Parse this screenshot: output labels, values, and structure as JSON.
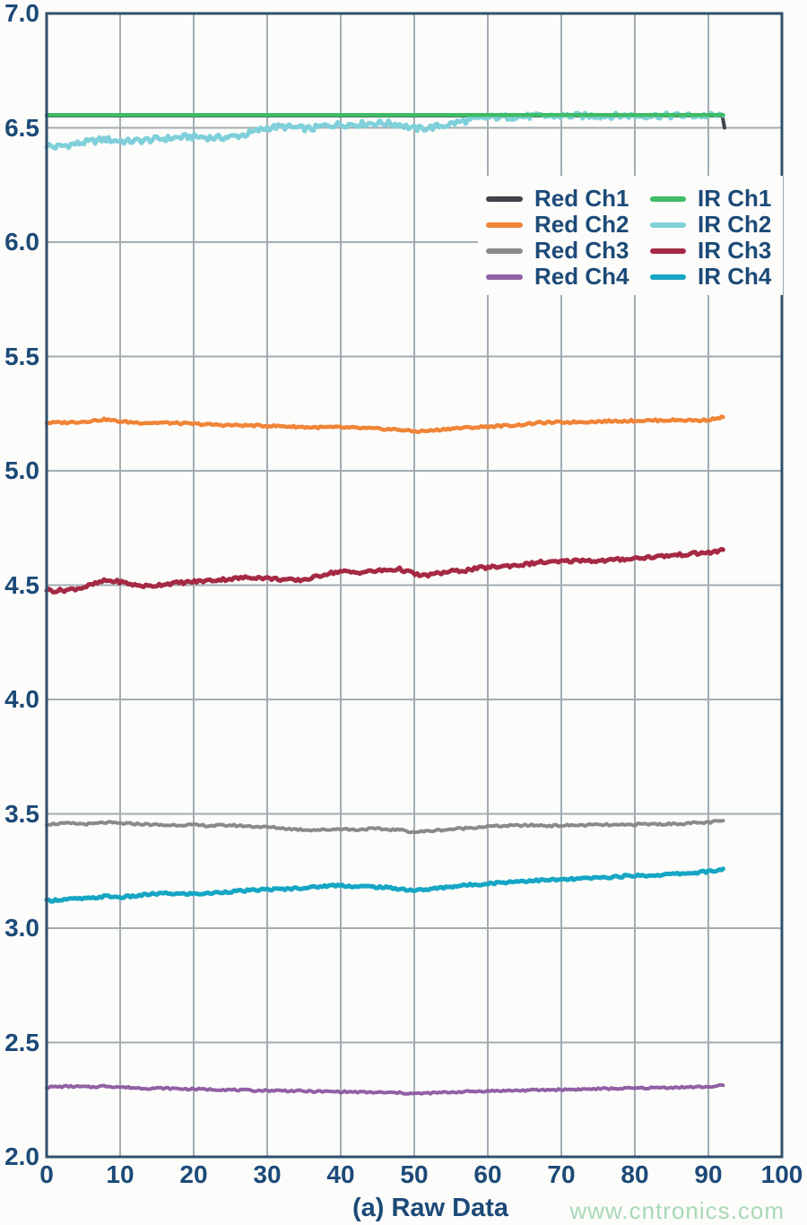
{
  "watermark": {
    "text": "www.cntronics.com"
  },
  "colors": {
    "text": "#1c4a78",
    "frame": "#31506c",
    "grid": "#a2adb3",
    "background": "#fcfcfa",
    "watermark": "#a7d9b6"
  },
  "chart_data": {
    "type": "line",
    "title": "",
    "xlabel": "(a) Raw Data",
    "ylabel": "",
    "xlim": [
      0,
      100
    ],
    "ylim": [
      2.0,
      7.0
    ],
    "x_ticks": [
      "0",
      "10",
      "20",
      "30",
      "40",
      "50",
      "60",
      "70",
      "80",
      "90",
      "100"
    ],
    "y_ticks": [
      "7.0",
      "6.5",
      "6.0",
      "5.5",
      "5.0",
      "4.5",
      "4.0",
      "3.5",
      "3.0",
      "2.5",
      "2.0"
    ],
    "grid": true,
    "legend_position": "upper-right-inside",
    "legend": [
      "Red Ch1",
      "IR Ch1",
      "Red Ch2",
      "IR Ch2",
      "Red Ch3",
      "IR Ch3",
      "Red Ch4",
      "IR Ch4"
    ],
    "x_data_range": [
      0,
      92
    ],
    "series": [
      {
        "name": "Red Ch1",
        "color": "#3f4348",
        "width": 4,
        "noise": 0,
        "points": [
          [
            0,
            6.553
          ],
          [
            91.9,
            6.553
          ],
          [
            92.2,
            6.5
          ]
        ]
      },
      {
        "name": "IR Ch2",
        "color": "#7fd0da",
        "width": 5,
        "noise": 0.013,
        "points": [
          [
            0,
            6.425
          ],
          [
            1,
            6.415
          ],
          [
            2,
            6.42
          ],
          [
            4,
            6.43
          ],
          [
            6,
            6.44
          ],
          [
            8,
            6.45
          ],
          [
            9,
            6.445
          ],
          [
            11,
            6.44
          ],
          [
            13,
            6.445
          ],
          [
            15,
            6.45
          ],
          [
            17,
            6.455
          ],
          [
            19,
            6.46
          ],
          [
            21,
            6.46
          ],
          [
            23,
            6.455
          ],
          [
            25,
            6.46
          ],
          [
            27,
            6.47
          ],
          [
            29,
            6.49
          ],
          [
            30,
            6.5
          ],
          [
            32,
            6.505
          ],
          [
            34,
            6.5
          ],
          [
            36,
            6.495
          ],
          [
            38,
            6.51
          ],
          [
            40,
            6.515
          ],
          [
            42,
            6.515
          ],
          [
            44,
            6.52
          ],
          [
            46,
            6.52
          ],
          [
            48,
            6.515
          ],
          [
            50,
            6.495
          ],
          [
            52,
            6.5
          ],
          [
            54,
            6.51
          ],
          [
            56,
            6.525
          ],
          [
            58,
            6.535
          ],
          [
            60,
            6.545
          ],
          [
            63,
            6.548
          ],
          [
            66,
            6.55
          ],
          [
            70,
            6.552
          ],
          [
            80,
            6.553
          ],
          [
            92,
            6.553
          ]
        ]
      },
      {
        "name": "IR Ch1",
        "color": "#3fbc66",
        "width": 4.5,
        "noise": 0,
        "points": [
          [
            0,
            6.556
          ],
          [
            92,
            6.556
          ]
        ]
      },
      {
        "name": "Red Ch2",
        "color": "#f08437",
        "width": 4.5,
        "noise": 0.0045,
        "points": [
          [
            0,
            5.21
          ],
          [
            3,
            5.212
          ],
          [
            5,
            5.215
          ],
          [
            8,
            5.225
          ],
          [
            10,
            5.215
          ],
          [
            13,
            5.21
          ],
          [
            16,
            5.21
          ],
          [
            20,
            5.205
          ],
          [
            24,
            5.2
          ],
          [
            28,
            5.198
          ],
          [
            32,
            5.195
          ],
          [
            36,
            5.19
          ],
          [
            40,
            5.19
          ],
          [
            44,
            5.185
          ],
          [
            48,
            5.18
          ],
          [
            50,
            5.172
          ],
          [
            52,
            5.175
          ],
          [
            55,
            5.185
          ],
          [
            58,
            5.19
          ],
          [
            61,
            5.195
          ],
          [
            64,
            5.2
          ],
          [
            67,
            5.21
          ],
          [
            70,
            5.212
          ],
          [
            74,
            5.215
          ],
          [
            78,
            5.218
          ],
          [
            82,
            5.22
          ],
          [
            86,
            5.222
          ],
          [
            89,
            5.22
          ],
          [
            91,
            5.228
          ],
          [
            92,
            5.235
          ]
        ]
      },
      {
        "name": "IR Ch3",
        "color": "#a52945",
        "width": 5,
        "noise": 0.007,
        "points": [
          [
            0,
            4.48
          ],
          [
            1,
            4.475
          ],
          [
            3,
            4.48
          ],
          [
            5,
            4.49
          ],
          [
            7,
            4.51
          ],
          [
            8,
            4.52
          ],
          [
            10,
            4.515
          ],
          [
            12,
            4.5
          ],
          [
            14,
            4.495
          ],
          [
            16,
            4.505
          ],
          [
            18,
            4.51
          ],
          [
            20,
            4.515
          ],
          [
            22,
            4.52
          ],
          [
            24,
            4.525
          ],
          [
            26,
            4.53
          ],
          [
            28,
            4.535
          ],
          [
            30,
            4.53
          ],
          [
            32,
            4.525
          ],
          [
            34,
            4.52
          ],
          [
            36,
            4.53
          ],
          [
            38,
            4.55
          ],
          [
            40,
            4.56
          ],
          [
            42,
            4.555
          ],
          [
            44,
            4.56
          ],
          [
            46,
            4.565
          ],
          [
            48,
            4.57
          ],
          [
            50,
            4.55
          ],
          [
            51,
            4.54
          ],
          [
            53,
            4.55
          ],
          [
            55,
            4.56
          ],
          [
            57,
            4.565
          ],
          [
            59,
            4.575
          ],
          [
            61,
            4.58
          ],
          [
            63,
            4.585
          ],
          [
            65,
            4.59
          ],
          [
            67,
            4.6
          ],
          [
            69,
            4.6
          ],
          [
            71,
            4.605
          ],
          [
            73,
            4.61
          ],
          [
            75,
            4.605
          ],
          [
            77,
            4.61
          ],
          [
            79,
            4.615
          ],
          [
            81,
            4.62
          ],
          [
            83,
            4.625
          ],
          [
            85,
            4.63
          ],
          [
            87,
            4.635
          ],
          [
            89,
            4.64
          ],
          [
            91,
            4.645
          ],
          [
            92,
            4.655
          ]
        ]
      },
      {
        "name": "Red Ch3",
        "color": "#8a8a8a",
        "width": 4,
        "noise": 0.0045,
        "points": [
          [
            0,
            3.455
          ],
          [
            3,
            3.458
          ],
          [
            6,
            3.455
          ],
          [
            8,
            3.462
          ],
          [
            10,
            3.458
          ],
          [
            13,
            3.455
          ],
          [
            16,
            3.45
          ],
          [
            19,
            3.452
          ],
          [
            22,
            3.448
          ],
          [
            25,
            3.45
          ],
          [
            28,
            3.445
          ],
          [
            31,
            3.44
          ],
          [
            34,
            3.432
          ],
          [
            36,
            3.43
          ],
          [
            38,
            3.43
          ],
          [
            40,
            3.435
          ],
          [
            42,
            3.43
          ],
          [
            44,
            3.435
          ],
          [
            46,
            3.432
          ],
          [
            48,
            3.43
          ],
          [
            50,
            3.42
          ],
          [
            52,
            3.425
          ],
          [
            54,
            3.43
          ],
          [
            56,
            3.435
          ],
          [
            58,
            3.44
          ],
          [
            60,
            3.445
          ],
          [
            63,
            3.448
          ],
          [
            66,
            3.45
          ],
          [
            69,
            3.448
          ],
          [
            72,
            3.45
          ],
          [
            75,
            3.452
          ],
          [
            78,
            3.45
          ],
          [
            81,
            3.455
          ],
          [
            84,
            3.455
          ],
          [
            87,
            3.458
          ],
          [
            90,
            3.462
          ],
          [
            92,
            3.47
          ]
        ]
      },
      {
        "name": "IR Ch4",
        "color": "#16a6c4",
        "width": 5,
        "noise": 0.005,
        "points": [
          [
            0,
            3.12
          ],
          [
            2,
            3.125
          ],
          [
            4,
            3.128
          ],
          [
            6,
            3.13
          ],
          [
            8,
            3.14
          ],
          [
            10,
            3.135
          ],
          [
            12,
            3.14
          ],
          [
            14,
            3.148
          ],
          [
            16,
            3.152
          ],
          [
            18,
            3.15
          ],
          [
            20,
            3.15
          ],
          [
            22,
            3.152
          ],
          [
            24,
            3.158
          ],
          [
            26,
            3.162
          ],
          [
            28,
            3.165
          ],
          [
            30,
            3.17
          ],
          [
            32,
            3.17
          ],
          [
            34,
            3.175
          ],
          [
            36,
            3.178
          ],
          [
            38,
            3.185
          ],
          [
            40,
            3.188
          ],
          [
            42,
            3.182
          ],
          [
            44,
            3.182
          ],
          [
            46,
            3.178
          ],
          [
            48,
            3.172
          ],
          [
            50,
            3.165
          ],
          [
            52,
            3.17
          ],
          [
            54,
            3.178
          ],
          [
            56,
            3.185
          ],
          [
            58,
            3.19
          ],
          [
            60,
            3.195
          ],
          [
            62,
            3.2
          ],
          [
            64,
            3.205
          ],
          [
            66,
            3.208
          ],
          [
            68,
            3.21
          ],
          [
            70,
            3.212
          ],
          [
            72,
            3.215
          ],
          [
            75,
            3.22
          ],
          [
            78,
            3.226
          ],
          [
            80,
            3.23
          ],
          [
            82,
            3.23
          ],
          [
            84,
            3.234
          ],
          [
            86,
            3.238
          ],
          [
            88,
            3.242
          ],
          [
            90,
            3.248
          ],
          [
            91,
            3.25
          ],
          [
            92,
            3.26
          ]
        ]
      },
      {
        "name": "Red Ch4",
        "color": "#9160a5",
        "width": 4,
        "noise": 0.004,
        "points": [
          [
            0,
            2.305
          ],
          [
            3,
            2.308
          ],
          [
            6,
            2.305
          ],
          [
            8,
            2.31
          ],
          [
            10,
            2.305
          ],
          [
            13,
            2.3
          ],
          [
            16,
            2.3
          ],
          [
            20,
            2.296
          ],
          [
            24,
            2.294
          ],
          [
            28,
            2.29
          ],
          [
            32,
            2.29
          ],
          [
            36,
            2.286
          ],
          [
            40,
            2.285
          ],
          [
            44,
            2.282
          ],
          [
            48,
            2.28
          ],
          [
            50,
            2.276
          ],
          [
            53,
            2.28
          ],
          [
            56,
            2.284
          ],
          [
            60,
            2.288
          ],
          [
            64,
            2.29
          ],
          [
            68,
            2.293
          ],
          [
            72,
            2.295
          ],
          [
            76,
            2.298
          ],
          [
            80,
            2.3
          ],
          [
            84,
            2.303
          ],
          [
            88,
            2.305
          ],
          [
            91,
            2.308
          ],
          [
            92,
            2.313
          ]
        ]
      }
    ]
  }
}
